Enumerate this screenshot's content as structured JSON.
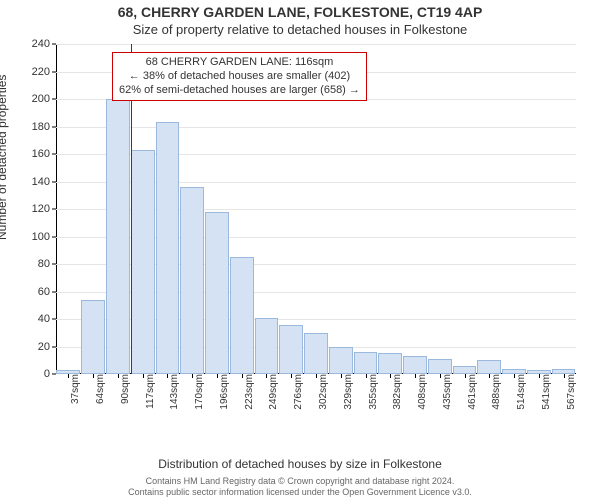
{
  "title": "68, CHERRY GARDEN LANE, FOLKESTONE, CT19 4AP",
  "subtitle": "Size of property relative to detached houses in Folkestone",
  "ylabel": "Number of detached properties",
  "xlabel": "Distribution of detached houses by size in Folkestone",
  "chart": {
    "type": "histogram",
    "ylim": [
      0,
      240
    ],
    "ytick_step": 20,
    "background_color": "#ffffff",
    "grid_color": "#e6e6e6",
    "bar_fill": "#d4e2f4",
    "bar_stroke": "#9bb8dd",
    "marker_line_color": "#cc0000",
    "axis_color": "#000000",
    "bar_width": 0.96,
    "x_categories": [
      "37sqm",
      "64sqm",
      "90sqm",
      "117sqm",
      "143sqm",
      "170sqm",
      "196sqm",
      "223sqm",
      "249sqm",
      "276sqm",
      "302sqm",
      "329sqm",
      "355sqm",
      "382sqm",
      "408sqm",
      "435sqm",
      "461sqm",
      "488sqm",
      "514sqm",
      "541sqm",
      "567sqm"
    ],
    "values": [
      3,
      54,
      200,
      163,
      183,
      136,
      118,
      85,
      41,
      36,
      30,
      20,
      16,
      15,
      13,
      11,
      6,
      10,
      4,
      3,
      4
    ],
    "marker_index": 3
  },
  "annotation": {
    "border_color": "#cc0000",
    "lines": [
      "68 CHERRY GARDEN LANE: 116sqm",
      "← 38% of detached houses are smaller (402)",
      "62% of semi-detached houses are larger (658) →"
    ]
  },
  "footer": {
    "line1": "Contains HM Land Registry data © Crown copyright and database right 2024.",
    "line2": "Contains public sector information licensed under the Open Government Licence v3.0.",
    "color": "#666666"
  }
}
